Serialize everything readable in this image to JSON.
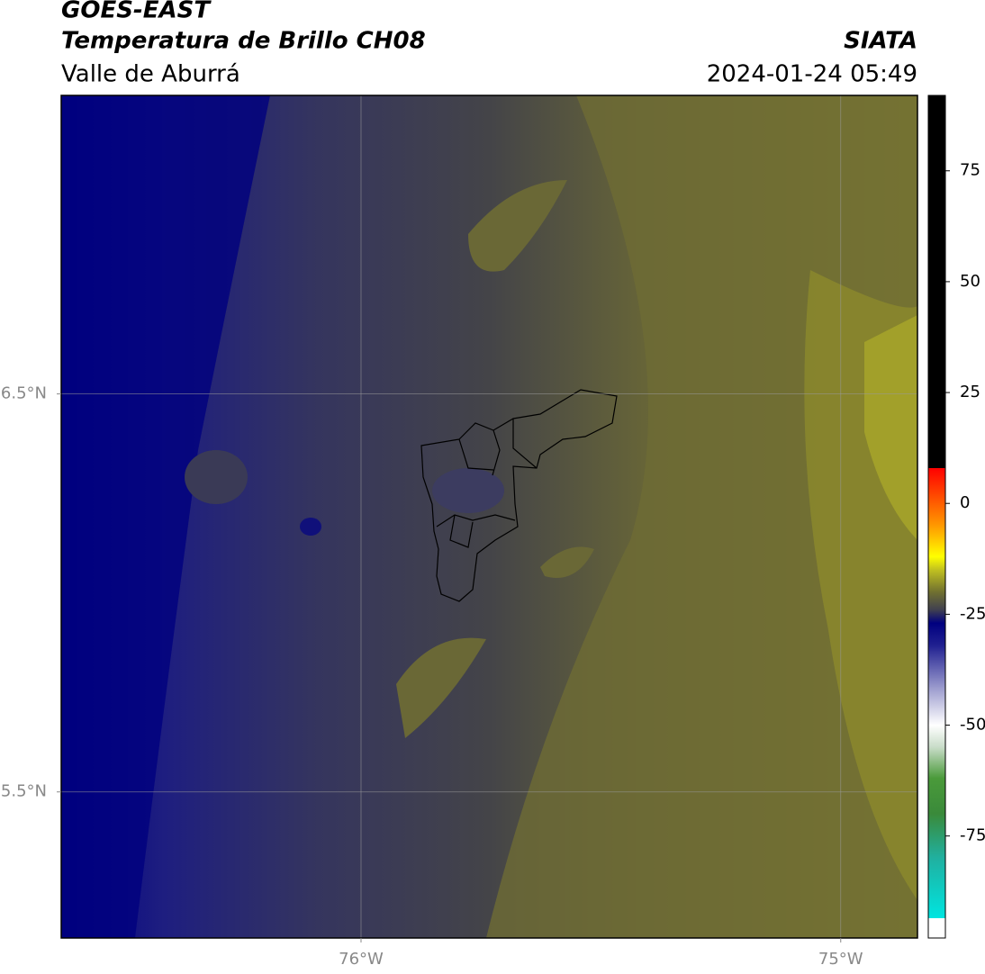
{
  "chart_data": {
    "type": "map",
    "title": "GOES-EAST",
    "subtitle": "Temperatura de Brillo CH08",
    "region": "Valle de Aburrá",
    "source": "SIATA",
    "datetime": "2024-01-24 05:49",
    "xlim": [
      -76.625,
      -74.84
    ],
    "ylim": [
      5.133,
      7.25
    ],
    "xticks": [
      {
        "value": -76,
        "label": "76°W"
      },
      {
        "value": -75,
        "label": "75°W"
      }
    ],
    "yticks": [
      {
        "value": 6.5,
        "label": "6.5°N"
      },
      {
        "value": 5.5,
        "label": "5.5°N"
      }
    ],
    "grid": true,
    "clim": [
      -98,
      92
    ],
    "cticks": [
      75,
      50,
      25,
      0,
      -25,
      -50,
      -75
    ],
    "colormap": [
      {
        "value": -98,
        "color": "#ffffff"
      },
      {
        "value": -93.5,
        "color": "#ffffff"
      },
      {
        "value": -93.5,
        "color": "#00e5e0"
      },
      {
        "value": -80,
        "color": "#20b0a0"
      },
      {
        "value": -70,
        "color": "#3a8a3a"
      },
      {
        "value": -62,
        "color": "#4a9a3a"
      },
      {
        "value": -55,
        "color": "#c8dcc8"
      },
      {
        "value": -50,
        "color": "#ffffff"
      },
      {
        "value": -42,
        "color": "#a0a0d0"
      },
      {
        "value": -32,
        "color": "#202090"
      },
      {
        "value": -27,
        "color": "#000080"
      },
      {
        "value": -24,
        "color": "#404050"
      },
      {
        "value": -20,
        "color": "#707030"
      },
      {
        "value": -15,
        "color": "#c0c020"
      },
      {
        "value": -12,
        "color": "#ffff00"
      },
      {
        "value": -5,
        "color": "#ff9900"
      },
      {
        "value": 8,
        "color": "#ff0000"
      },
      {
        "value": 8,
        "color": "#000000"
      },
      {
        "value": 92,
        "color": "#000000"
      }
    ]
  }
}
